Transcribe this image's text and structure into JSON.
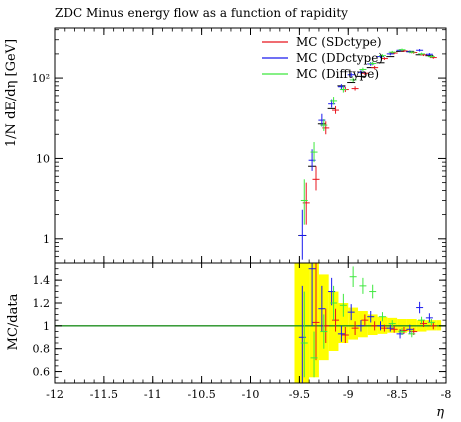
{
  "chart_data": {
    "type": "scatter",
    "title": "ZDC Minus energy flow as a function of rapidity",
    "xlabel": "η",
    "xlim": [
      -12,
      -8
    ],
    "x_ticks": [
      {
        "v": -12,
        "label": "-12"
      },
      {
        "v": -11.5,
        "label": "-11.5"
      },
      {
        "v": -11,
        "label": "-11"
      },
      {
        "v": -10.5,
        "label": "-10.5"
      },
      {
        "v": -10,
        "label": "-10"
      },
      {
        "v": -9.5,
        "label": "-9.5"
      },
      {
        "v": -9,
        "label": "-9"
      },
      {
        "v": -8.5,
        "label": "-8.5"
      },
      {
        "v": -8,
        "label": "-8"
      }
    ],
    "main": {
      "ylabel": "1/N dE/dη [GeV]",
      "yscale": "log",
      "ylim": [
        0.5,
        420
      ],
      "y_ticks": [
        {
          "v": 1,
          "label": "1"
        },
        {
          "v": 10,
          "label": "10"
        },
        {
          "v": 100,
          "label": "10²"
        }
      ]
    },
    "ratio": {
      "ylabel": "MC/data",
      "ylim": [
        0.5,
        1.55
      ],
      "y_ticks": [
        {
          "v": 0.6,
          "label": "0.6"
        },
        {
          "v": 0.8,
          "label": "0.8"
        },
        {
          "v": 1,
          "label": "1"
        },
        {
          "v": 1.2,
          "label": "1.2"
        },
        {
          "v": 1.4,
          "label": "1.4"
        }
      ],
      "reference": 1,
      "band": [
        {
          "x0": -9.55,
          "x1": -9.4,
          "lo": 0.5,
          "hi": 1.55
        },
        {
          "x0": -9.4,
          "x1": -9.3,
          "lo": 0.55,
          "hi": 1.55
        },
        {
          "x0": -9.3,
          "x1": -9.2,
          "lo": 0.7,
          "hi": 1.45
        },
        {
          "x0": -9.2,
          "x1": -9.1,
          "lo": 0.78,
          "hi": 1.3
        },
        {
          "x0": -9.1,
          "x1": -9.0,
          "lo": 0.85,
          "hi": 1.2
        },
        {
          "x0": -9.0,
          "x1": -8.9,
          "lo": 0.88,
          "hi": 1.16
        },
        {
          "x0": -8.9,
          "x1": -8.8,
          "lo": 0.9,
          "hi": 1.13
        },
        {
          "x0": -8.8,
          "x1": -8.7,
          "lo": 0.92,
          "hi": 1.1
        },
        {
          "x0": -8.7,
          "x1": -8.6,
          "lo": 0.93,
          "hi": 1.08
        },
        {
          "x0": -8.6,
          "x1": -8.5,
          "lo": 0.94,
          "hi": 1.07
        },
        {
          "x0": -8.5,
          "x1": -8.4,
          "lo": 0.94,
          "hi": 1.06
        },
        {
          "x0": -8.4,
          "x1": -8.3,
          "lo": 0.95,
          "hi": 1.06
        },
        {
          "x0": -8.3,
          "x1": -8.2,
          "lo": 0.95,
          "hi": 1.05
        },
        {
          "x0": -8.2,
          "x1": -8.1,
          "lo": 0.96,
          "hi": 1.05
        },
        {
          "x0": -8.1,
          "x1": -8.05,
          "lo": 0.96,
          "hi": 1.05
        }
      ]
    },
    "data_reference": [
      {
        "x": -9.47,
        "y": 1.1
      },
      {
        "x": -9.37,
        "y": 8
      },
      {
        "x": -9.27,
        "y": 27
      },
      {
        "x": -9.17,
        "y": 42
      },
      {
        "x": -9.07,
        "y": 80
      },
      {
        "x": -8.97,
        "y": 88
      },
      {
        "x": -8.87,
        "y": 105
      },
      {
        "x": -8.77,
        "y": 135
      },
      {
        "x": -8.67,
        "y": 155
      },
      {
        "x": -8.57,
        "y": 185
      },
      {
        "x": -8.47,
        "y": 215
      },
      {
        "x": -8.37,
        "y": 215
      },
      {
        "x": -8.27,
        "y": 195
      },
      {
        "x": -8.17,
        "y": 190
      }
    ],
    "series": [
      {
        "name": "MC (SDctype)",
        "color": "#e8141c",
        "points": [
          {
            "x": -9.43,
            "y": 2.8,
            "ylo": 1.5,
            "yhi": 5.0,
            "r": null,
            "rlo": null,
            "rhi": null
          },
          {
            "x": -9.33,
            "y": 5.5,
            "ylo": 4.0,
            "yhi": 8.0,
            "r": 1.03,
            "rlo": 0.7,
            "rhi": 1.55
          },
          {
            "x": -9.23,
            "y": 24,
            "ylo": 20,
            "yhi": 29,
            "r": 1.0,
            "rlo": 0.85,
            "rhi": 1.15
          },
          {
            "x": -9.13,
            "y": 40,
            "ylo": 36,
            "yhi": 45,
            "r": 1.05,
            "rlo": 0.95,
            "rhi": 1.15
          },
          {
            "x": -9.03,
            "y": 72,
            "ylo": 67,
            "yhi": 78,
            "r": 0.92,
            "rlo": 0.85,
            "rhi": 0.99
          },
          {
            "x": -8.93,
            "y": 74,
            "ylo": 70,
            "yhi": 79,
            "r": 0.98,
            "rlo": 0.92,
            "rhi": 1.04
          },
          {
            "x": -8.83,
            "y": 115,
            "ylo": 109,
            "yhi": 121,
            "r": 1.05,
            "rlo": 1.0,
            "rhi": 1.1
          },
          {
            "x": -8.73,
            "y": 135,
            "ylo": 128,
            "yhi": 142,
            "r": 1.0,
            "rlo": 0.96,
            "rhi": 1.04
          },
          {
            "x": -8.63,
            "y": 175,
            "ylo": 168,
            "yhi": 182,
            "r": 0.98,
            "rlo": 0.95,
            "rhi": 1.01
          },
          {
            "x": -8.53,
            "y": 205,
            "ylo": 198,
            "yhi": 212,
            "r": 0.97,
            "rlo": 0.94,
            "rhi": 1.0
          },
          {
            "x": -8.43,
            "y": 218,
            "ylo": 211,
            "yhi": 225,
            "r": 0.96,
            "rlo": 0.93,
            "rhi": 0.99
          },
          {
            "x": -8.33,
            "y": 208,
            "ylo": 201,
            "yhi": 215,
            "r": 0.95,
            "rlo": 0.92,
            "rhi": 0.98
          },
          {
            "x": -8.23,
            "y": 195,
            "ylo": 188,
            "yhi": 202,
            "r": 1.02,
            "rlo": 0.99,
            "rhi": 1.05
          },
          {
            "x": -8.13,
            "y": 180,
            "ylo": 174,
            "yhi": 186,
            "r": 1.0,
            "rlo": 0.97,
            "rhi": 1.03
          }
        ]
      },
      {
        "name": "MC (DDctype)",
        "color": "#1a1aee",
        "points": [
          {
            "x": -9.47,
            "y": 1.1,
            "ylo": 0.55,
            "yhi": 2.3,
            "r": 0.9,
            "rlo": 0.5,
            "rhi": 1.35
          },
          {
            "x": -9.37,
            "y": 9.5,
            "ylo": 7.0,
            "yhi": 13,
            "r": 1.5,
            "rlo": 1.0,
            "rhi": 1.55
          },
          {
            "x": -9.27,
            "y": 30,
            "ylo": 25,
            "yhi": 36,
            "r": 1.15,
            "rlo": 0.95,
            "rhi": 1.35
          },
          {
            "x": -9.17,
            "y": 48,
            "ylo": 43,
            "yhi": 54,
            "r": 1.3,
            "rlo": 1.18,
            "rhi": 1.42
          },
          {
            "x": -9.07,
            "y": 78,
            "ylo": 72,
            "yhi": 84,
            "r": 0.93,
            "rlo": 0.86,
            "rhi": 1.0
          },
          {
            "x": -8.97,
            "y": 110,
            "ylo": 103,
            "yhi": 117,
            "r": 1.12,
            "rlo": 1.05,
            "rhi": 1.19
          },
          {
            "x": -8.87,
            "y": 118,
            "ylo": 111,
            "yhi": 125,
            "r": 1.0,
            "rlo": 0.95,
            "rhi": 1.05
          },
          {
            "x": -8.77,
            "y": 150,
            "ylo": 142,
            "yhi": 158,
            "r": 1.08,
            "rlo": 1.03,
            "rhi": 1.13
          },
          {
            "x": -8.67,
            "y": 185,
            "ylo": 177,
            "yhi": 193,
            "r": 1.0,
            "rlo": 0.96,
            "rhi": 1.04
          },
          {
            "x": -8.57,
            "y": 200,
            "ylo": 192,
            "yhi": 208,
            "r": 0.98,
            "rlo": 0.95,
            "rhi": 1.01
          },
          {
            "x": -8.47,
            "y": 222,
            "ylo": 214,
            "yhi": 230,
            "r": 0.93,
            "rlo": 0.89,
            "rhi": 0.97
          },
          {
            "x": -8.37,
            "y": 212,
            "ylo": 204,
            "yhi": 220,
            "r": 0.97,
            "rlo": 0.93,
            "rhi": 1.01
          },
          {
            "x": -8.27,
            "y": 222,
            "ylo": 214,
            "yhi": 230,
            "r": 1.16,
            "rlo": 1.11,
            "rhi": 1.21
          },
          {
            "x": -8.17,
            "y": 198,
            "ylo": 191,
            "yhi": 205,
            "r": 1.07,
            "rlo": 1.03,
            "rhi": 1.11
          }
        ]
      },
      {
        "name": "MC (Difftype)",
        "color": "#3ee83e",
        "points": [
          {
            "x": -9.45,
            "y": 3.0,
            "ylo": 1.5,
            "yhi": 5.5,
            "r": 0.85,
            "rlo": 0.55,
            "rhi": 1.3
          },
          {
            "x": -9.35,
            "y": 12,
            "ylo": 9.0,
            "yhi": 16,
            "r": 0.72,
            "rlo": 0.55,
            "rhi": 0.95
          },
          {
            "x": -9.25,
            "y": 26,
            "ylo": 22,
            "yhi": 31,
            "r": 0.95,
            "rlo": 0.8,
            "rhi": 1.1
          },
          {
            "x": -9.15,
            "y": 52,
            "ylo": 47,
            "yhi": 58,
            "r": 1.2,
            "rlo": 1.05,
            "rhi": 1.35
          },
          {
            "x": -9.05,
            "y": 72,
            "ylo": 66,
            "yhi": 79,
            "r": 1.18,
            "rlo": 1.08,
            "rhi": 1.28
          },
          {
            "x": -8.95,
            "y": 95,
            "ylo": 89,
            "yhi": 101,
            "r": 1.43,
            "rlo": 1.34,
            "rhi": 1.52
          },
          {
            "x": -8.85,
            "y": 128,
            "ylo": 121,
            "yhi": 135,
            "r": 1.35,
            "rlo": 1.28,
            "rhi": 1.42
          },
          {
            "x": -8.75,
            "y": 152,
            "ylo": 144,
            "yhi": 160,
            "r": 1.3,
            "rlo": 1.24,
            "rhi": 1.36
          },
          {
            "x": -8.65,
            "y": 190,
            "ylo": 182,
            "yhi": 198,
            "r": 1.08,
            "rlo": 1.04,
            "rhi": 1.12
          },
          {
            "x": -8.55,
            "y": 210,
            "ylo": 202,
            "yhi": 218,
            "r": 1.02,
            "rlo": 0.99,
            "rhi": 1.05
          },
          {
            "x": -8.45,
            "y": 225,
            "ylo": 217,
            "yhi": 233,
            "r": 0.95,
            "rlo": 0.92,
            "rhi": 0.98
          },
          {
            "x": -8.35,
            "y": 210,
            "ylo": 202,
            "yhi": 218,
            "r": 0.93,
            "rlo": 0.9,
            "rhi": 0.96
          },
          {
            "x": -8.25,
            "y": 200,
            "ylo": 193,
            "yhi": 207,
            "r": 1.05,
            "rlo": 1.02,
            "rhi": 1.08
          },
          {
            "x": -8.15,
            "y": 185,
            "ylo": 178,
            "yhi": 192,
            "r": 1.03,
            "rlo": 1.0,
            "rhi": 1.06
          }
        ]
      }
    ],
    "legend_placement": "top-right",
    "colors": {
      "band": "#ffff00",
      "reference_line": "#1f8f1f",
      "data_marker": "#000000"
    }
  }
}
